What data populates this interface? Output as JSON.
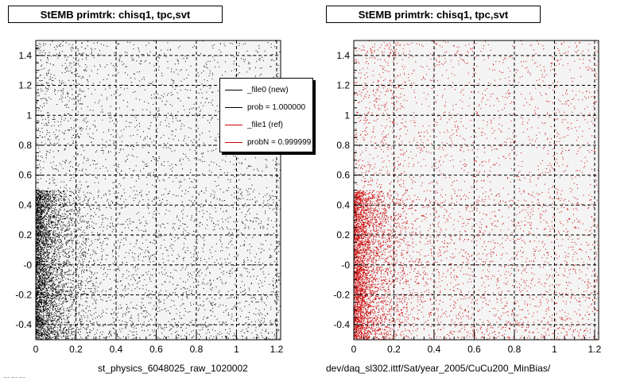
{
  "panels": [
    {
      "title": "StEMB primtrk: chisq1, tpc,svt",
      "xlabel": "st_physics_6048025_raw_1020002",
      "color": "#000000"
    },
    {
      "title": "StEMB primtrk: chisq1, tpc,svt",
      "xlabel": "dev/daq_sl302.ittf/Sat/year_2005/CuCu200_MinBias/",
      "color": "#cc0000"
    }
  ],
  "footer_left": "...  ...  ...",
  "legend": {
    "items": [
      {
        "label": "_file0 (new)",
        "color": "#000000"
      },
      {
        "label": "prob = 1.000000",
        "color": "#000000"
      },
      {
        "label": "_file1 (ref)",
        "color": "#cc0000"
      },
      {
        "label": "probN = 0.999999",
        "color": "#cc0000"
      }
    ]
  },
  "chart_data": [
    {
      "type": "scatter",
      "title": "StEMB primtrk: chisq1, tpc,svt",
      "xlabel": "st_physics_6048025_raw_1020002",
      "ylabel": "",
      "xlim": [
        0,
        1.22
      ],
      "ylim": [
        -0.5,
        1.5
      ],
      "xticks": [
        "0",
        "0.2",
        "0.4",
        "0.6",
        "0.8",
        "1",
        "1.2"
      ],
      "yticks": [
        "-0.4",
        "-0.2",
        "-0",
        "0.2",
        "0.4",
        "0.6",
        "0.8",
        "1",
        "1.2",
        "1.4"
      ],
      "grid": true,
      "marker_color": "#000000",
      "distribution": "dense near x=0 for y in [-0.5, 0.5], sparse uniform elsewhere"
    },
    {
      "type": "scatter",
      "title": "StEMB primtrk: chisq1, tpc,svt",
      "xlabel": "dev/daq_sl302.ittf/Sat/year_2005/CuCu200_MinBias/",
      "ylabel": "",
      "xlim": [
        0,
        1.22
      ],
      "ylim": [
        -0.5,
        1.5
      ],
      "xticks": [
        "0",
        "0.2",
        "0.4",
        "0.6",
        "0.8",
        "1",
        "1.2"
      ],
      "yticks": [
        "-0.4",
        "-0.2",
        "-0",
        "0.2",
        "0.4",
        "0.6",
        "0.8",
        "1",
        "1.2",
        "1.4"
      ],
      "grid": true,
      "marker_color": "#cc0000",
      "distribution": "dense near x=0 for y in [-0.5, 0.5], sparse uniform elsewhere"
    }
  ]
}
